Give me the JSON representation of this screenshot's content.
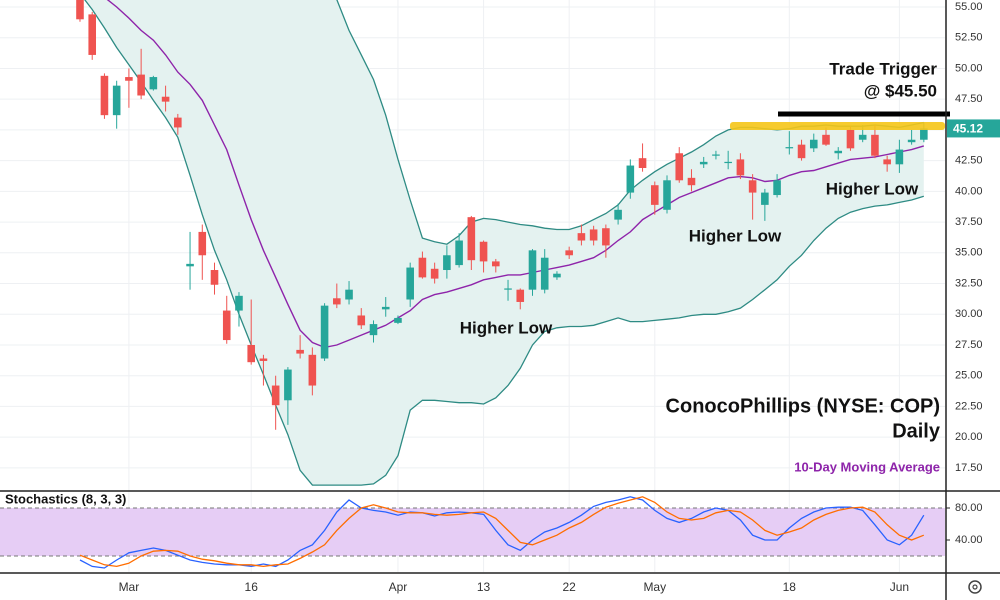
{
  "chart_data": [
    {
      "type": "candlestick",
      "title": "ConocoPhillips (NYSE: COP)",
      "subtitle": "Daily",
      "xlim": [
        -6.54,
        70.73
      ],
      "xticks": [
        {
          "value": 4,
          "label": "Mar"
        },
        {
          "value": 14,
          "label": "16"
        },
        {
          "value": 26,
          "label": "Apr"
        },
        {
          "value": 33,
          "label": "13"
        },
        {
          "value": 40,
          "label": "22"
        },
        {
          "value": 47,
          "label": "May"
        },
        {
          "value": 58,
          "label": "18"
        },
        {
          "value": 67,
          "label": "Jun"
        }
      ],
      "ylim": [
        15.7,
        55.57
      ],
      "yticks": [
        {
          "value": 17.5,
          "label": "17.50"
        },
        {
          "value": 20,
          "label": "20.00"
        },
        {
          "value": 22.5,
          "label": "22.50"
        },
        {
          "value": 25,
          "label": "25.00"
        },
        {
          "value": 27.5,
          "label": "27.50"
        },
        {
          "value": 30,
          "label": "30.00"
        },
        {
          "value": 32.5,
          "label": "32.50"
        },
        {
          "value": 35,
          "label": "35.00"
        },
        {
          "value": 37.5,
          "label": "37.50"
        },
        {
          "value": 40,
          "label": "40.00"
        },
        {
          "value": 42.5,
          "label": "42.50"
        },
        {
          "value": 45,
          "label": "45.00"
        },
        {
          "value": 47.5,
          "label": "47.50"
        },
        {
          "value": 50,
          "label": "50.00"
        },
        {
          "value": 52.5,
          "label": "52.50"
        },
        {
          "value": 55,
          "label": "55.00"
        }
      ],
      "grid": true,
      "up_color": "#26a69a",
      "down_color": "#ef5350",
      "open": [
        56,
        54.4,
        49.4,
        46.2,
        49.3,
        49.5,
        48.3,
        47.7,
        46.0,
        33.9,
        36.7,
        33.6,
        30.3,
        30.3,
        27.5,
        26.4,
        24.2,
        23.0,
        27.1,
        26.7,
        26.4,
        31.3,
        31.2,
        29.9,
        28.3,
        30.4,
        29.3,
        31.2,
        34.6,
        33.7,
        33.6,
        34.0,
        37.9,
        35.9,
        34.3,
        32.0,
        32.0,
        32.0,
        32.0,
        33.0,
        35.2,
        36.6,
        36.9,
        37.0,
        37.7,
        39.9,
        42.7,
        40.5,
        38.5,
        43.1,
        41.1,
        42.2,
        42.9,
        42.3,
        42.6,
        40.9,
        38.9,
        39.7,
        43.5,
        43.8,
        43.5,
        44.6,
        43.1,
        45.0,
        44.2,
        44.6,
        42.6,
        42.2,
        44.0,
        44.2
      ],
      "high": [
        56.5,
        54.6,
        49.6,
        49.0,
        50.0,
        51.6,
        49.4,
        48.6,
        46.3,
        36.7,
        37.3,
        34.2,
        31.5,
        31.8,
        31.2,
        26.7,
        25.0,
        25.7,
        28.3,
        27.3,
        30.9,
        32.5,
        32.7,
        30.5,
        29.5,
        31.4,
        29.9,
        34.2,
        35.1,
        34.2,
        35.6,
        36.6,
        38.0,
        36.0,
        34.5,
        32.8,
        32.1,
        35.3,
        35.3,
        33.5,
        35.5,
        37.3,
        37.2,
        37.3,
        39.0,
        42.6,
        43.9,
        40.8,
        41.3,
        43.6,
        41.8,
        42.8,
        43.3,
        43.3,
        43.1,
        41.4,
        40.2,
        41.4,
        44.9,
        44.2,
        44.7,
        45.2,
        43.6,
        45.3,
        45.4,
        45.4,
        42.9,
        44.2,
        45.0,
        45.6
      ],
      "low": [
        53.8,
        50.7,
        45.9,
        45.1,
        46.8,
        47.5,
        48.2,
        46.5,
        44.6,
        32.0,
        32.8,
        31.6,
        27.6,
        29.0,
        25.9,
        24.2,
        20.6,
        21.0,
        26.4,
        23.4,
        26.2,
        30.5,
        30.8,
        28.8,
        27.7,
        29.8,
        29.2,
        30.6,
        32.9,
        32.5,
        32.9,
        33.8,
        33.6,
        33.4,
        33.4,
        31.1,
        30.4,
        31.5,
        31.7,
        32.8,
        34.5,
        35.6,
        35.6,
        34.6,
        37.3,
        39.4,
        41.6,
        38.1,
        38.2,
        40.7,
        40.0,
        41.9,
        42.6,
        41.8,
        41.0,
        37.7,
        37.6,
        39.5,
        43.0,
        42.5,
        43.2,
        43.7,
        42.6,
        43.3,
        44.0,
        42.7,
        41.6,
        41.5,
        43.8,
        44.0
      ],
      "close": [
        54.0,
        51.1,
        46.2,
        48.6,
        49.0,
        47.8,
        49.3,
        47.3,
        45.2,
        34.1,
        34.8,
        32.4,
        27.9,
        31.5,
        26.1,
        26.2,
        22.6,
        25.5,
        26.8,
        24.2,
        30.7,
        30.8,
        32.0,
        29.1,
        29.2,
        30.6,
        29.7,
        33.8,
        33.0,
        32.9,
        34.8,
        36.0,
        34.4,
        34.3,
        33.9,
        32.1,
        31.0,
        35.2,
        34.6,
        33.3,
        34.8,
        36.0,
        36.0,
        35.6,
        38.5,
        42.1,
        41.9,
        38.9,
        40.9,
        40.9,
        40.5,
        42.4,
        43.0,
        42.4,
        41.3,
        39.9,
        39.9,
        40.9,
        43.6,
        42.7,
        44.2,
        43.8,
        43.3,
        43.5,
        44.6,
        42.9,
        42.2,
        43.4,
        44.2,
        45.12
      ],
      "last_color": "#26a69a",
      "bands": {
        "color": "#2e8b84",
        "fill": "#e4f2f0",
        "upper": [
          62,
          63,
          64,
          64,
          64,
          64,
          64,
          64,
          63,
          63,
          62,
          62,
          61,
          61,
          60,
          60,
          59,
          59,
          58,
          57,
          56.5,
          55.6,
          53.1,
          51.1,
          49.1,
          46.2,
          42.6,
          39.3,
          36.2,
          35.9,
          35.7,
          36.4,
          37.5,
          37.8,
          37.7,
          37.5,
          37.3,
          37.2,
          37.0,
          36.9,
          36.9,
          37.2,
          37.7,
          38.2,
          38.9,
          40.1,
          40.9,
          41.6,
          42.2,
          42.7,
          43.2,
          43.8,
          44.5,
          45.0,
          45.2,
          45.2,
          45.1,
          45.0,
          45.1,
          45.3,
          45.3,
          45.4,
          45.3,
          45.3,
          45.3,
          45.4,
          45.3,
          45.2,
          45.4,
          45.6
        ],
        "lower": [
          56.1,
          54.8,
          53.3,
          51.7,
          50.3,
          48.9,
          47.4,
          46.0,
          44.4,
          41.3,
          38.1,
          35.2,
          32.8,
          30.0,
          27.5,
          25.1,
          22.6,
          20.2,
          17.3,
          16.1,
          16.1,
          16.1,
          16.1,
          16.1,
          16.2,
          16.9,
          18.5,
          22.2,
          23.0,
          23.0,
          22.9,
          22.8,
          22.8,
          22.7,
          23.2,
          24.2,
          25.6,
          27.5,
          28.6,
          28.9,
          29.0,
          29.0,
          29.1,
          29.4,
          29.7,
          29.4,
          29.4,
          29.5,
          29.6,
          29.7,
          29.9,
          30.0,
          30.0,
          30.2,
          30.5,
          31.2,
          32.0,
          32.8,
          33.9,
          34.8,
          36.0,
          37.0,
          37.8,
          38.3,
          38.6,
          38.8,
          38.9,
          39.1,
          39.3,
          39.6
        ]
      },
      "series": [
        {
          "name": "10-Day Moving Average",
          "color": "#8e24aa",
          "values": [
            57.5,
            56.5,
            55.8,
            55.0,
            54.1,
            53.1,
            52.3,
            51.1,
            49.7,
            48.7,
            47.4,
            45.4,
            43.4,
            40.5,
            37.7,
            35.2,
            33.0,
            30.8,
            28.7,
            27.7,
            27.3,
            27.5,
            27.9,
            28.3,
            28.7,
            29.1,
            29.7,
            30.3,
            31.2,
            31.6,
            31.8,
            32.1,
            32.4,
            32.8,
            33.0,
            33.2,
            33.2,
            33.4,
            33.6,
            33.8,
            34.0,
            34.3,
            34.6,
            35.2,
            36.0,
            36.7,
            37.7,
            38.3,
            38.9,
            39.5,
            39.9,
            40.3,
            40.7,
            41.1,
            41.2,
            41.1,
            40.8,
            40.9,
            41.3,
            41.6,
            41.7,
            42.0,
            42.3,
            42.6,
            42.7,
            42.8,
            43.0,
            43.2,
            43.4,
            43.7
          ]
        }
      ],
      "annotations": [
        "Trade Trigger",
        "@ $45.50",
        "Higher Low",
        "Higher Low",
        "Higher Low"
      ]
    },
    {
      "type": "line",
      "title": "Stochastics (8, 3, 3)",
      "xlim": [
        -6.54,
        70.73
      ],
      "ylim": [
        0,
        100
      ],
      "yticks": [
        {
          "value": 40,
          "label": "40.00"
        },
        {
          "value": 80,
          "label": "80.00"
        }
      ],
      "band": [
        20,
        80
      ],
      "band_color": "#e6cdf5",
      "series": [
        {
          "color": "#2962ff",
          "values": [
            15,
            7,
            5,
            15,
            24,
            27,
            30,
            27,
            21,
            15,
            12,
            10,
            9,
            9,
            7,
            10,
            7,
            15,
            27,
            34,
            52,
            75,
            90,
            80,
            77,
            75,
            71,
            75,
            74,
            70,
            74,
            75,
            74,
            72,
            52,
            34,
            27,
            40,
            50,
            55,
            62,
            71,
            82,
            87,
            90,
            94,
            90,
            77,
            67,
            62,
            67,
            75,
            80,
            77,
            65,
            46,
            40,
            40,
            55,
            67,
            75,
            80,
            81,
            81,
            77,
            59,
            40,
            34,
            46,
            71
          ]
        },
        {
          "color": "#ff6d00",
          "values": [
            21,
            15,
            9,
            7,
            11,
            20,
            26,
            27,
            26,
            20,
            16,
            14,
            11,
            9,
            9,
            7,
            9,
            10,
            17,
            25,
            34,
            52,
            67,
            80,
            84,
            80,
            75,
            74,
            74,
            72,
            71,
            72,
            74,
            75,
            67,
            52,
            37,
            34,
            40,
            46,
            55,
            62,
            72,
            81,
            86,
            90,
            94,
            87,
            75,
            67,
            65,
            67,
            74,
            77,
            75,
            65,
            52,
            46,
            50,
            55,
            65,
            72,
            77,
            80,
            81,
            75,
            59,
            46,
            40,
            46
          ]
        }
      ]
    }
  ]
}
